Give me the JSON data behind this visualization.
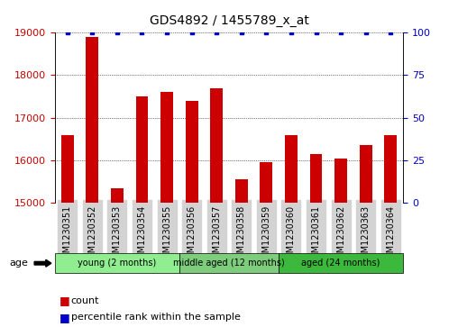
{
  "title": "GDS4892 / 1455789_x_at",
  "samples": [
    "GSM1230351",
    "GSM1230352",
    "GSM1230353",
    "GSM1230354",
    "GSM1230355",
    "GSM1230356",
    "GSM1230357",
    "GSM1230358",
    "GSM1230359",
    "GSM1230360",
    "GSM1230361",
    "GSM1230362",
    "GSM1230363",
    "GSM1230364"
  ],
  "counts": [
    16600,
    18900,
    15350,
    17500,
    17600,
    17400,
    17700,
    15550,
    15950,
    16600,
    16150,
    16050,
    16350,
    16600
  ],
  "percentiles": [
    100,
    100,
    100,
    100,
    100,
    100,
    100,
    100,
    100,
    100,
    100,
    100,
    100,
    100
  ],
  "ylim_left": [
    15000,
    19000
  ],
  "ylim_right": [
    0,
    100
  ],
  "yticks_left": [
    15000,
    16000,
    17000,
    18000,
    19000
  ],
  "yticks_right": [
    0,
    25,
    50,
    75,
    100
  ],
  "bar_color": "#cc0000",
  "dot_color": "#0000cc",
  "grid_color": "#000000",
  "bg_color": "#ffffff",
  "groups": [
    {
      "label": "young (2 months)",
      "start": 0,
      "end": 5,
      "color": "#90ee90"
    },
    {
      "label": "middle aged (12 months)",
      "start": 5,
      "end": 9,
      "color": "#7dcd7d"
    },
    {
      "label": "aged (24 months)",
      "start": 9,
      "end": 14,
      "color": "#3cb93c"
    }
  ],
  "legend_count_color": "#cc0000",
  "legend_dot_color": "#0000cc",
  "age_label": "age",
  "xlabel_rotation": 90,
  "bar_width": 0.5
}
